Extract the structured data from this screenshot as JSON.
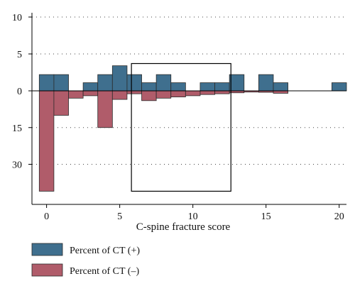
{
  "chart_data": {
    "type": "bar",
    "xlabel": "C-spine fracture score",
    "ylabel": "",
    "xlim": [
      -1,
      20.5
    ],
    "x_ticks": [
      0,
      5,
      10,
      15,
      20
    ],
    "x_tick_labels": [
      "0",
      "5",
      "10",
      "15",
      "20"
    ],
    "bin_width": 1,
    "upper_ylim": [
      0,
      10
    ],
    "upper_ticks": [
      0,
      5,
      10
    ],
    "upper_tick_labels": [
      "0",
      "5",
      "10"
    ],
    "lower_ylim": [
      0,
      45
    ],
    "lower_ticks": [
      15,
      30
    ],
    "lower_tick_labels": [
      "15",
      "30"
    ],
    "grid": true,
    "legend_position": "bottom-left",
    "series": [
      {
        "name": "Percent of CT (+)",
        "color": "#3f6f8e",
        "direction": "up",
        "points": [
          {
            "x": 0,
            "y": 2.2
          },
          {
            "x": 1,
            "y": 2.2
          },
          {
            "x": 3,
            "y": 1.1
          },
          {
            "x": 4,
            "y": 2.2
          },
          {
            "x": 5,
            "y": 3.4
          },
          {
            "x": 6,
            "y": 2.2
          },
          {
            "x": 7,
            "y": 1.1
          },
          {
            "x": 8,
            "y": 2.2
          },
          {
            "x": 9,
            "y": 1.1
          },
          {
            "x": 11,
            "y": 1.1
          },
          {
            "x": 12,
            "y": 1.1
          },
          {
            "x": 13,
            "y": 2.2
          },
          {
            "x": 15,
            "y": 2.2
          },
          {
            "x": 16,
            "y": 1.1
          },
          {
            "x": 20,
            "y": 1.1
          }
        ]
      },
      {
        "name": "Percent of CT (–)",
        "color": "#b05c6a",
        "direction": "down",
        "points": [
          {
            "x": 0,
            "y": 41
          },
          {
            "x": 1,
            "y": 10
          },
          {
            "x": 2,
            "y": 3
          },
          {
            "x": 3,
            "y": 2
          },
          {
            "x": 4,
            "y": 15
          },
          {
            "x": 5,
            "y": 3.5
          },
          {
            "x": 6,
            "y": 1.2
          },
          {
            "x": 7,
            "y": 4
          },
          {
            "x": 8,
            "y": 3
          },
          {
            "x": 9,
            "y": 2.5
          },
          {
            "x": 10,
            "y": 2
          },
          {
            "x": 11,
            "y": 1.5
          },
          {
            "x": 12,
            "y": 1.2
          },
          {
            "x": 13,
            "y": 0.8
          },
          {
            "x": 14,
            "y": 0.5
          },
          {
            "x": 15,
            "y": 0.6
          },
          {
            "x": 16,
            "y": 1
          }
        ]
      }
    ],
    "highlight_box": {
      "x0": 5.8,
      "x1": 12.6,
      "y_top": 3.7,
      "y_bottom": 41
    }
  },
  "legend": {
    "items": [
      {
        "label": "Percent of CT (+)",
        "color": "#3f6f8e"
      },
      {
        "label": "Percent of CT (–)",
        "color": "#b05c6a"
      }
    ]
  }
}
